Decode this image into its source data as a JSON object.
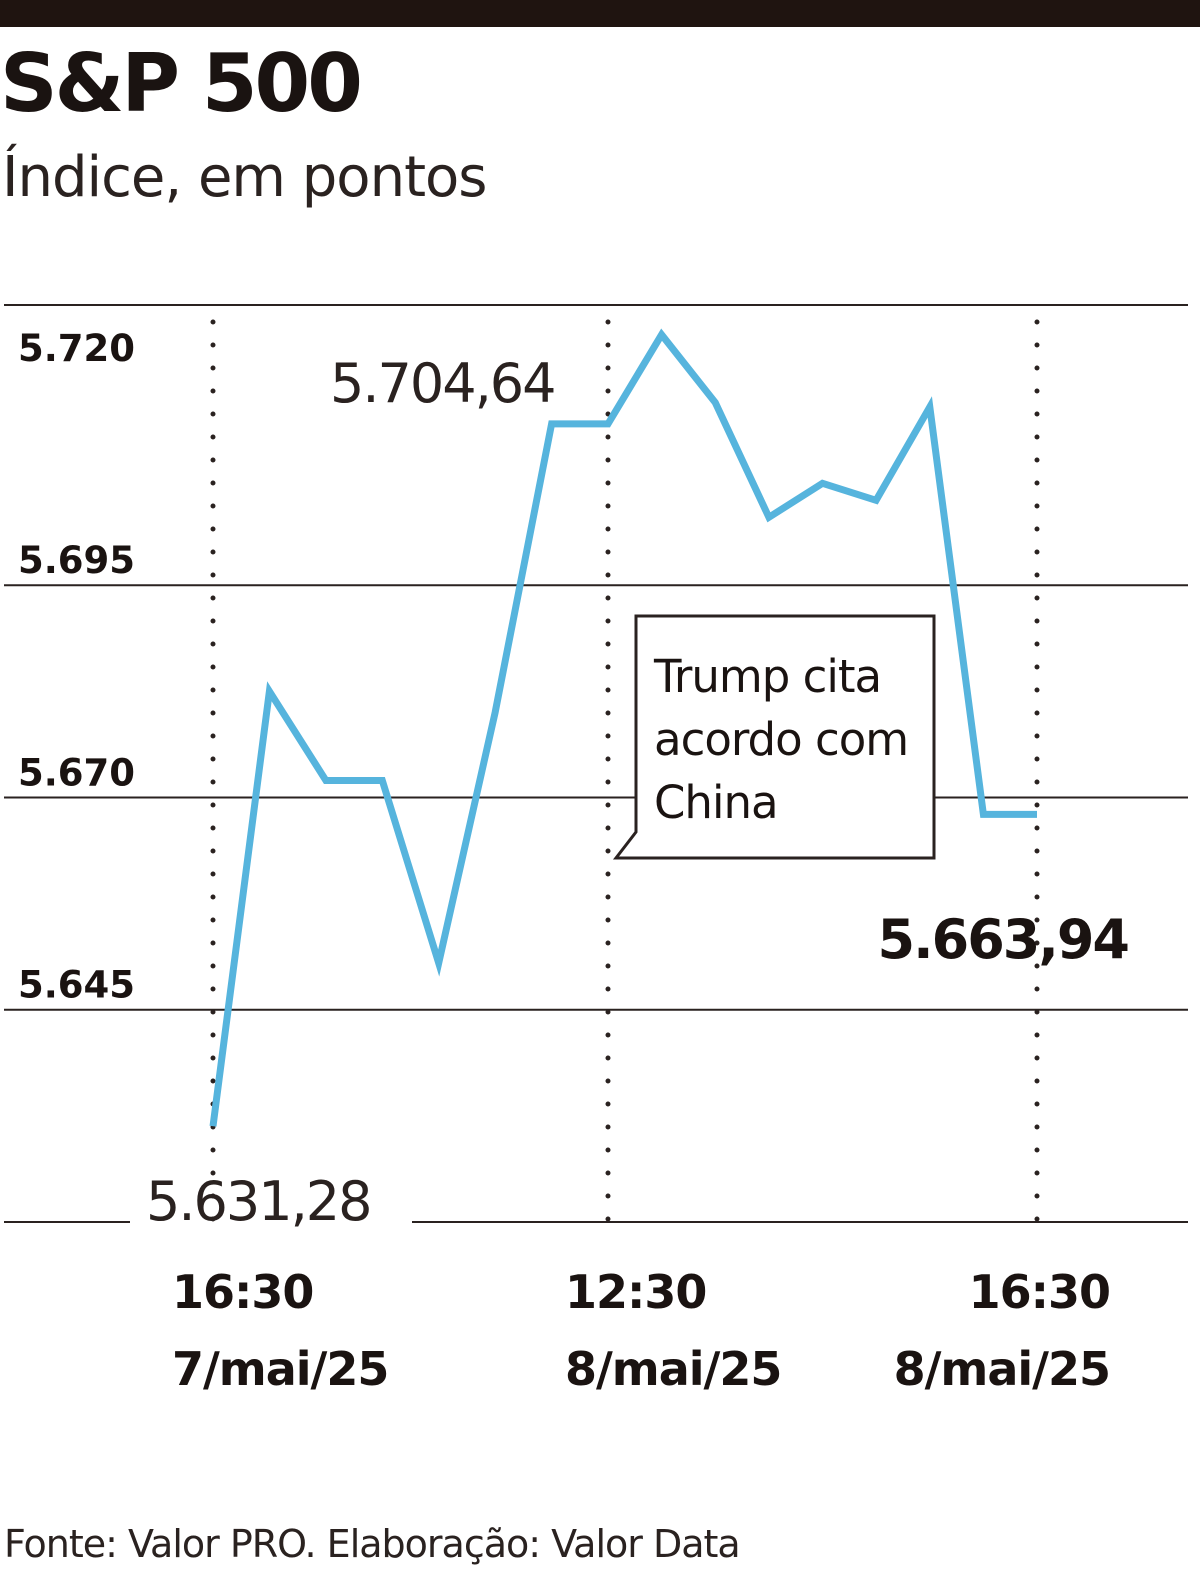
{
  "header": {
    "title": "S&P 500",
    "subtitle": "Índice, em pontos"
  },
  "footer": {
    "source": "Fonte: Valor PRO. Elaboração: Valor Data"
  },
  "colors": {
    "line": "#56b4dd",
    "grid": "#2a2220",
    "text": "#1a1311"
  },
  "chart_data": {
    "type": "line",
    "title": "S&P 500",
    "subtitle": "Índice, em pontos",
    "ylim": [
      5620,
      5728
    ],
    "yticks": [
      5645,
      5670,
      5695,
      5720
    ],
    "ytick_labels": [
      "5.645",
      "5.670",
      "5.695",
      "5.720"
    ],
    "xlim": [
      0,
      17
    ],
    "x_marks": [
      {
        "x": 0,
        "time": "16:30",
        "date": "7/mai/25"
      },
      {
        "x": 7,
        "time": "12:30",
        "date": "8/mai/25"
      },
      {
        "x": 15,
        "time": "16:30",
        "date": "8/mai/25"
      }
    ],
    "series": [
      {
        "x": [
          0,
          1,
          2,
          3,
          4,
          5,
          6,
          7,
          8,
          9,
          10,
          11,
          12,
          13,
          14,
          15
        ],
        "values": [
          5631.28,
          5682.5,
          5672.0,
          5672.0,
          5650.5,
          5680.0,
          5714.0,
          5714.0,
          5724.5,
          5716.5,
          5703.0,
          5707.0,
          5705.0,
          5716.0,
          5668.0,
          5668.0
        ]
      }
    ],
    "data_labels": {
      "start": "5.631,28",
      "high": "5.704,64",
      "end": "5.663,94"
    },
    "annotation": {
      "lines": [
        "Trump cita",
        "acordo com",
        "China"
      ]
    },
    "grid": true,
    "legend": "none"
  }
}
